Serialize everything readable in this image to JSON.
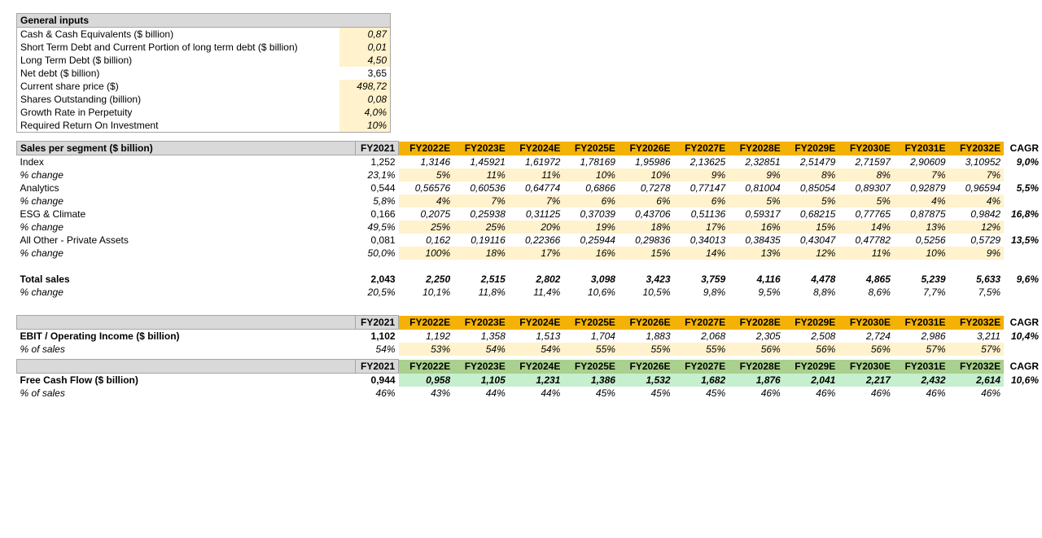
{
  "colors": {
    "header_gray": "#d9d9d9",
    "border_gray": "#a6a6a6",
    "input_yellow": "#fff2cc",
    "forecast_orange": "#f4b206",
    "forecast_green": "#a9d08e",
    "fcf_green": "#c6efce",
    "background": "#ffffff",
    "text": "#000000"
  },
  "typography": {
    "font_family": "Segoe UI, Arial, sans-serif",
    "base_fontsize_pt": 9
  },
  "general_inputs": {
    "title": "General inputs",
    "rows": [
      {
        "label": "Cash & Cash Equivalents ($ billion)",
        "value": "0,87",
        "style": "yellow"
      },
      {
        "label": "Short Term Debt and Current Portion of long term debt ($ billion)",
        "value": "0,01",
        "style": "yellow"
      },
      {
        "label": "Long Term Debt ($ billion)",
        "value": "4,50",
        "style": "yellow"
      },
      {
        "label": "Net debt ($ billion)",
        "value": "3,65",
        "style": "plain"
      },
      {
        "label": "Current share price ($)",
        "value": "498,72",
        "style": "yellow"
      },
      {
        "label": "Shares Outstanding (billion)",
        "value": "0,08",
        "style": "yellow"
      },
      {
        "label": "Growth Rate in Perpetuity",
        "value": "4,0%",
        "style": "yellow"
      },
      {
        "label": "Required Return On Investment",
        "value": "10%",
        "style": "yellow"
      }
    ]
  },
  "years": [
    "FY2022E",
    "FY2023E",
    "FY2024E",
    "FY2025E",
    "FY2026E",
    "FY2027E",
    "FY2028E",
    "FY2029E",
    "FY2030E",
    "FY2031E",
    "FY2032E"
  ],
  "base_year": "FY2021",
  "cagr_label": "CAGR",
  "sales_segment": {
    "title": "Sales per segment ($ billion)",
    "rows": [
      {
        "label": "Index",
        "base": "1,252",
        "f": [
          "1,3146",
          "1,45921",
          "1,61972",
          "1,78169",
          "1,95986",
          "2,13625",
          "2,32851",
          "2,51479",
          "2,71597",
          "2,90609",
          "3,10952"
        ],
        "cagr": "9,0%",
        "bold": false,
        "fstyle": "plain"
      },
      {
        "label": "% change",
        "base": "23,1%",
        "f": [
          "5%",
          "11%",
          "11%",
          "10%",
          "10%",
          "9%",
          "9%",
          "8%",
          "8%",
          "7%",
          "7%"
        ],
        "cagr": "",
        "bold": false,
        "italic": true,
        "fstyle": "yellow"
      },
      {
        "label": "Analytics",
        "base": "0,544",
        "f": [
          "0,56576",
          "0,60536",
          "0,64774",
          "0,6866",
          "0,7278",
          "0,77147",
          "0,81004",
          "0,85054",
          "0,89307",
          "0,92879",
          "0,96594"
        ],
        "cagr": "5,5%",
        "bold": false,
        "fstyle": "plain"
      },
      {
        "label": "% change",
        "base": "5,8%",
        "f": [
          "4%",
          "7%",
          "7%",
          "6%",
          "6%",
          "6%",
          "5%",
          "5%",
          "5%",
          "4%",
          "4%"
        ],
        "cagr": "",
        "bold": false,
        "italic": true,
        "fstyle": "yellow"
      },
      {
        "label": "ESG & Climate",
        "base": "0,166",
        "f": [
          "0,2075",
          "0,25938",
          "0,31125",
          "0,37039",
          "0,43706",
          "0,51136",
          "0,59317",
          "0,68215",
          "0,77765",
          "0,87875",
          "0,9842"
        ],
        "cagr": "16,8%",
        "bold": false,
        "fstyle": "plain"
      },
      {
        "label": "% change",
        "base": "49,5%",
        "f": [
          "25%",
          "25%",
          "20%",
          "19%",
          "18%",
          "17%",
          "16%",
          "15%",
          "14%",
          "13%",
          "12%"
        ],
        "cagr": "",
        "bold": false,
        "italic": true,
        "fstyle": "yellow"
      },
      {
        "label": "All Other - Private Assets",
        "base": "0,081",
        "f": [
          "0,162",
          "0,19116",
          "0,22366",
          "0,25944",
          "0,29836",
          "0,34013",
          "0,38435",
          "0,43047",
          "0,47782",
          "0,5256",
          "0,5729"
        ],
        "cagr": "13,5%",
        "bold": false,
        "fstyle": "plain"
      },
      {
        "label": "% change",
        "base": "50,0%",
        "f": [
          "100%",
          "18%",
          "17%",
          "16%",
          "15%",
          "14%",
          "13%",
          "12%",
          "11%",
          "10%",
          "9%"
        ],
        "cagr": "",
        "bold": false,
        "italic": true,
        "fstyle": "yellow"
      },
      {
        "spacer": true
      },
      {
        "label": "Total sales",
        "base": "2,043",
        "f": [
          "2,250",
          "2,515",
          "2,802",
          "3,098",
          "3,423",
          "3,759",
          "4,116",
          "4,478",
          "4,865",
          "5,239",
          "5,633"
        ],
        "cagr": "9,6%",
        "bold": true,
        "fstyle": "boldplain"
      },
      {
        "label": "% change",
        "base": "20,5%",
        "f": [
          "10,1%",
          "11,8%",
          "11,4%",
          "10,6%",
          "10,5%",
          "9,8%",
          "9,5%",
          "8,8%",
          "8,6%",
          "7,7%",
          "7,5%"
        ],
        "cagr": "",
        "bold": false,
        "italic": true,
        "fstyle": "plainital"
      }
    ]
  },
  "ebit": {
    "title": "",
    "rows": [
      {
        "label": "EBIT / Operating Income ($ billion)",
        "base": "1,102",
        "f": [
          "1,192",
          "1,358",
          "1,513",
          "1,704",
          "1,883",
          "2,068",
          "2,305",
          "2,508",
          "2,724",
          "2,986",
          "3,211"
        ],
        "cagr": "10,4%",
        "bold": true,
        "fstyle": "plain"
      },
      {
        "label": "% of sales",
        "base": "54%",
        "f": [
          "53%",
          "54%",
          "54%",
          "55%",
          "55%",
          "55%",
          "56%",
          "56%",
          "56%",
          "57%",
          "57%"
        ],
        "cagr": "",
        "bold": false,
        "italic": true,
        "fstyle": "yellow"
      }
    ]
  },
  "fcf": {
    "title": "",
    "rows": [
      {
        "label": "Free Cash Flow ($ billion)",
        "base": "0,944",
        "f": [
          "0,958",
          "1,105",
          "1,231",
          "1,386",
          "1,532",
          "1,682",
          "1,876",
          "2,041",
          "2,217",
          "2,432",
          "2,614"
        ],
        "cagr": "10,6%",
        "bold": true,
        "fstyle": "green"
      },
      {
        "label": "% of sales",
        "base": "46%",
        "f": [
          "43%",
          "44%",
          "44%",
          "45%",
          "45%",
          "45%",
          "46%",
          "46%",
          "46%",
          "46%",
          "46%"
        ],
        "cagr": "",
        "bold": false,
        "italic": true,
        "fstyle": "plainital"
      }
    ]
  }
}
